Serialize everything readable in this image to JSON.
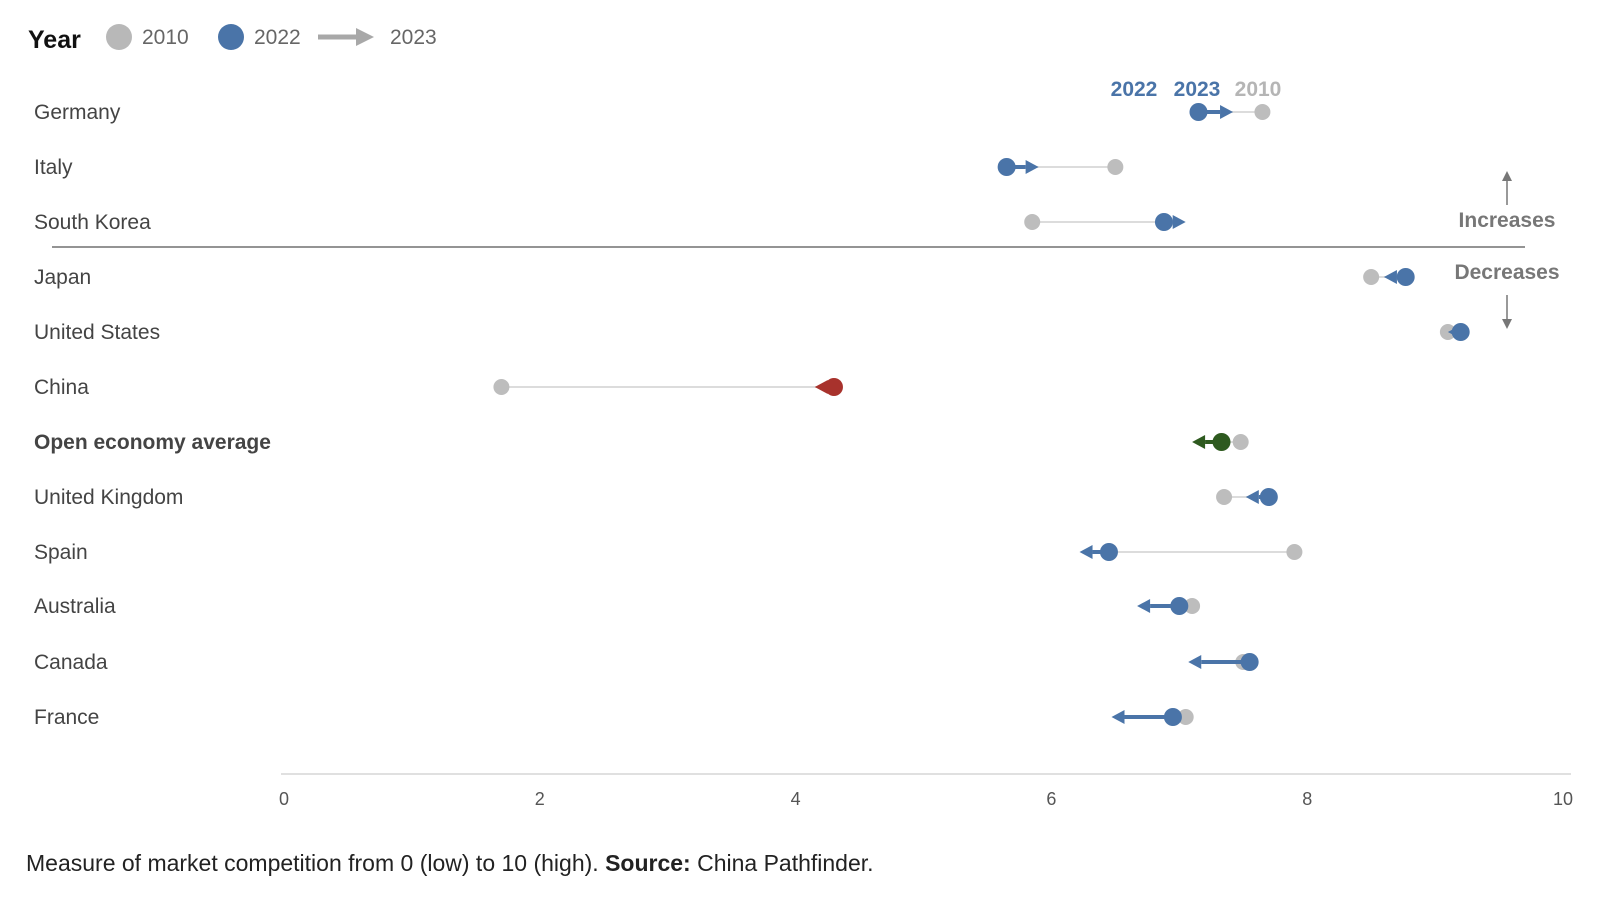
{
  "chart_data": {
    "type": "dumbbell",
    "legend": {
      "title": "Year",
      "items": [
        {
          "label": "2010",
          "marker": "dot",
          "color": "#b8b8b8"
        },
        {
          "label": "2022",
          "marker": "dot",
          "color": "#4a74a8"
        },
        {
          "label": "2023",
          "marker": "arrow",
          "color": "#a8a8a8"
        }
      ]
    },
    "xlim": [
      0,
      10
    ],
    "xticks": [
      "0",
      "2",
      "4",
      "6",
      "8",
      "10"
    ],
    "colors": {
      "v2010": "#bdbdbd",
      "v2022": "#4a74a8",
      "china": "#a8322c",
      "average": "#2e5a1f",
      "connector": "#dcdcdc"
    },
    "rows": [
      {
        "country": "Germany",
        "y2010": 7.65,
        "y2022": 7.15,
        "y2023": 7.42,
        "color": "#4a74a8"
      },
      {
        "country": "Italy",
        "y2010": 6.5,
        "y2022": 5.65,
        "y2023": 5.9,
        "color": "#4a74a8"
      },
      {
        "country": "South Korea",
        "y2010": 5.85,
        "y2022": 6.88,
        "y2023": 7.05,
        "color": "#4a74a8"
      },
      {
        "country": "Japan",
        "y2010": 8.5,
        "y2022": 8.77,
        "y2023": 8.6,
        "color": "#4a74a8"
      },
      {
        "country": "United States",
        "y2010": 9.1,
        "y2022": 9.2,
        "y2023": 9.1,
        "color": "#4a74a8"
      },
      {
        "country": "China",
        "y2010": 1.7,
        "y2022": 4.3,
        "y2023": 4.15,
        "color": "#a8322c"
      },
      {
        "country": "Open economy average",
        "y2010": 7.48,
        "y2022": 7.33,
        "y2023": 7.1,
        "color": "#2e5a1f",
        "bold": true
      },
      {
        "country": "United Kingdom",
        "y2010": 7.35,
        "y2022": 7.7,
        "y2023": 7.52,
        "color": "#4a74a8"
      },
      {
        "country": "Spain",
        "y2010": 7.9,
        "y2022": 6.45,
        "y2023": 6.22,
        "color": "#4a74a8"
      },
      {
        "country": "Australia",
        "y2010": 7.1,
        "y2022": 7.0,
        "y2023": 6.67,
        "color": "#4a74a8"
      },
      {
        "country": "Canada",
        "y2010": 7.5,
        "y2022": 7.55,
        "y2023": 7.07,
        "color": "#4a74a8"
      },
      {
        "country": "France",
        "y2010": 7.05,
        "y2022": 6.95,
        "y2023": 6.47,
        "color": "#4a74a8"
      }
    ],
    "annotation_labels": {
      "y2022": "2022",
      "y2023": "2023",
      "y2010": "2010"
    },
    "direction_labels": {
      "up": "Increases",
      "down": "Decreases"
    }
  },
  "footer": {
    "note": "Measure of market competition from 0 (low) to 10 (high).",
    "source_label": "Source:",
    "source": "China Pathfinder."
  }
}
